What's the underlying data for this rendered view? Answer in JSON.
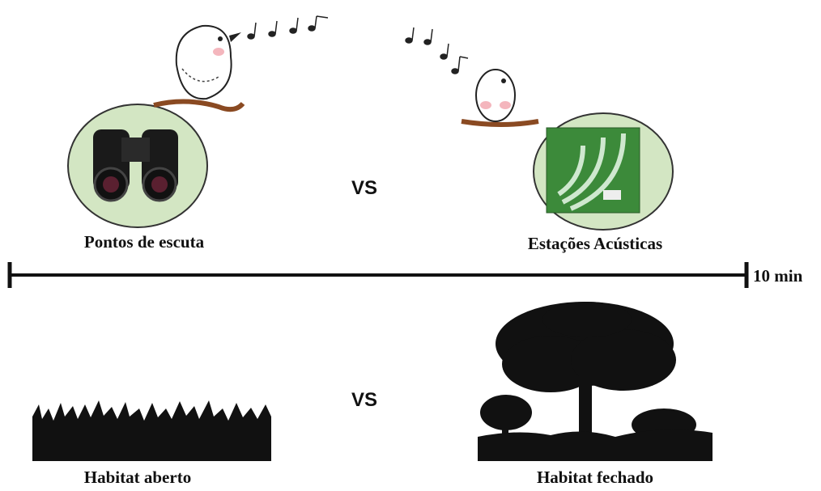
{
  "top": {
    "left_label": "Pontos de escuta",
    "vs": "VS",
    "right_label": "Estações Acústicas"
  },
  "timeline": {
    "label": "10 min"
  },
  "bottom": {
    "vs": "VS",
    "left_label": "Habitat aberto",
    "right_label": "Habitat fechado"
  }
}
